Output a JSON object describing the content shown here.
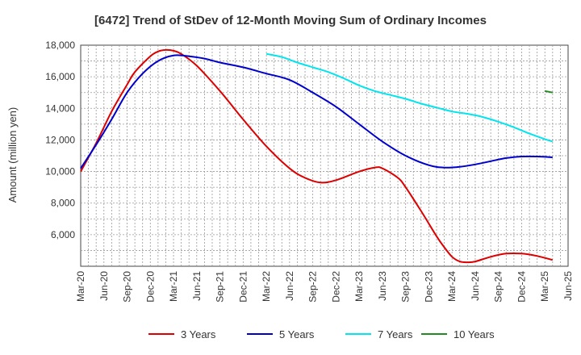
{
  "chart_data": {
    "type": "line",
    "title": "[6472]  Trend of StDev of 12-Month Moving Sum of Ordinary Incomes",
    "xlabel": "",
    "ylabel": "Amount (million yen)",
    "ylim": [
      4000,
      18000
    ],
    "yticks": [
      6000,
      8000,
      10000,
      12000,
      14000,
      16000,
      18000
    ],
    "ytick_labels": [
      "6,000",
      "8,000",
      "10,000",
      "12,000",
      "14,000",
      "16,000",
      "18,000"
    ],
    "x_tick_labels": [
      "Mar-20",
      "Jun-20",
      "Sep-20",
      "Dec-20",
      "Mar-21",
      "Jun-21",
      "Sep-21",
      "Dec-21",
      "Mar-22",
      "Jun-22",
      "Sep-22",
      "Dec-22",
      "Mar-23",
      "Jun-23",
      "Sep-23",
      "Dec-23",
      "Mar-24",
      "Jun-24",
      "Sep-24",
      "Dec-24",
      "Mar-25",
      "Jun-25"
    ],
    "x_range_months": [
      0,
      63
    ],
    "grid": true,
    "legend_position": "bottom",
    "series": [
      {
        "name": "3 Years",
        "color": "#dd0000",
        "points": [
          [
            0,
            10000
          ],
          [
            2,
            11800
          ],
          [
            4,
            13800
          ],
          [
            6,
            15500
          ],
          [
            7,
            16300
          ],
          [
            9,
            17300
          ],
          [
            10,
            17600
          ],
          [
            11,
            17700
          ],
          [
            12,
            17650
          ],
          [
            13,
            17450
          ],
          [
            15,
            16700
          ],
          [
            18,
            15100
          ],
          [
            21,
            13300
          ],
          [
            24,
            11600
          ],
          [
            27,
            10200
          ],
          [
            29,
            9600
          ],
          [
            31,
            9300
          ],
          [
            33,
            9450
          ],
          [
            36,
            10000
          ],
          [
            38,
            10250
          ],
          [
            39,
            10200
          ],
          [
            41,
            9600
          ],
          [
            42,
            9000
          ],
          [
            44,
            7500
          ],
          [
            46,
            5900
          ],
          [
            47,
            5200
          ],
          [
            48,
            4600
          ],
          [
            49,
            4300
          ],
          [
            50,
            4250
          ],
          [
            51,
            4300
          ],
          [
            53,
            4600
          ],
          [
            55,
            4800
          ],
          [
            57,
            4800
          ],
          [
            59,
            4650
          ],
          [
            61,
            4400
          ]
        ]
      },
      {
        "name": "5 Years",
        "color": "#0000cc",
        "points": [
          [
            0,
            10200
          ],
          [
            2,
            11700
          ],
          [
            4,
            13300
          ],
          [
            6,
            15000
          ],
          [
            8,
            16200
          ],
          [
            10,
            17000
          ],
          [
            12,
            17350
          ],
          [
            14,
            17300
          ],
          [
            16,
            17150
          ],
          [
            18,
            16900
          ],
          [
            21,
            16600
          ],
          [
            24,
            16200
          ],
          [
            27,
            15800
          ],
          [
            30,
            15000
          ],
          [
            33,
            14100
          ],
          [
            36,
            13000
          ],
          [
            39,
            11900
          ],
          [
            42,
            11000
          ],
          [
            45,
            10400
          ],
          [
            47,
            10250
          ],
          [
            49,
            10300
          ],
          [
            51,
            10450
          ],
          [
            53,
            10650
          ],
          [
            55,
            10850
          ],
          [
            57,
            10950
          ],
          [
            59,
            10950
          ],
          [
            61,
            10900
          ]
        ]
      },
      {
        "name": "7 Years",
        "color": "#00e5ee",
        "points": [
          [
            24,
            17450
          ],
          [
            26,
            17250
          ],
          [
            28,
            16900
          ],
          [
            30,
            16600
          ],
          [
            32,
            16300
          ],
          [
            34,
            15900
          ],
          [
            36,
            15450
          ],
          [
            38,
            15100
          ],
          [
            40,
            14850
          ],
          [
            42,
            14600
          ],
          [
            44,
            14300
          ],
          [
            46,
            14050
          ],
          [
            48,
            13800
          ],
          [
            50,
            13650
          ],
          [
            52,
            13450
          ],
          [
            54,
            13150
          ],
          [
            56,
            12800
          ],
          [
            58,
            12400
          ],
          [
            60,
            12050
          ],
          [
            61,
            11900
          ]
        ]
      },
      {
        "name": "10 Years",
        "color": "#228b22",
        "points": [
          [
            60,
            15100
          ],
          [
            61,
            15000
          ]
        ]
      }
    ]
  }
}
